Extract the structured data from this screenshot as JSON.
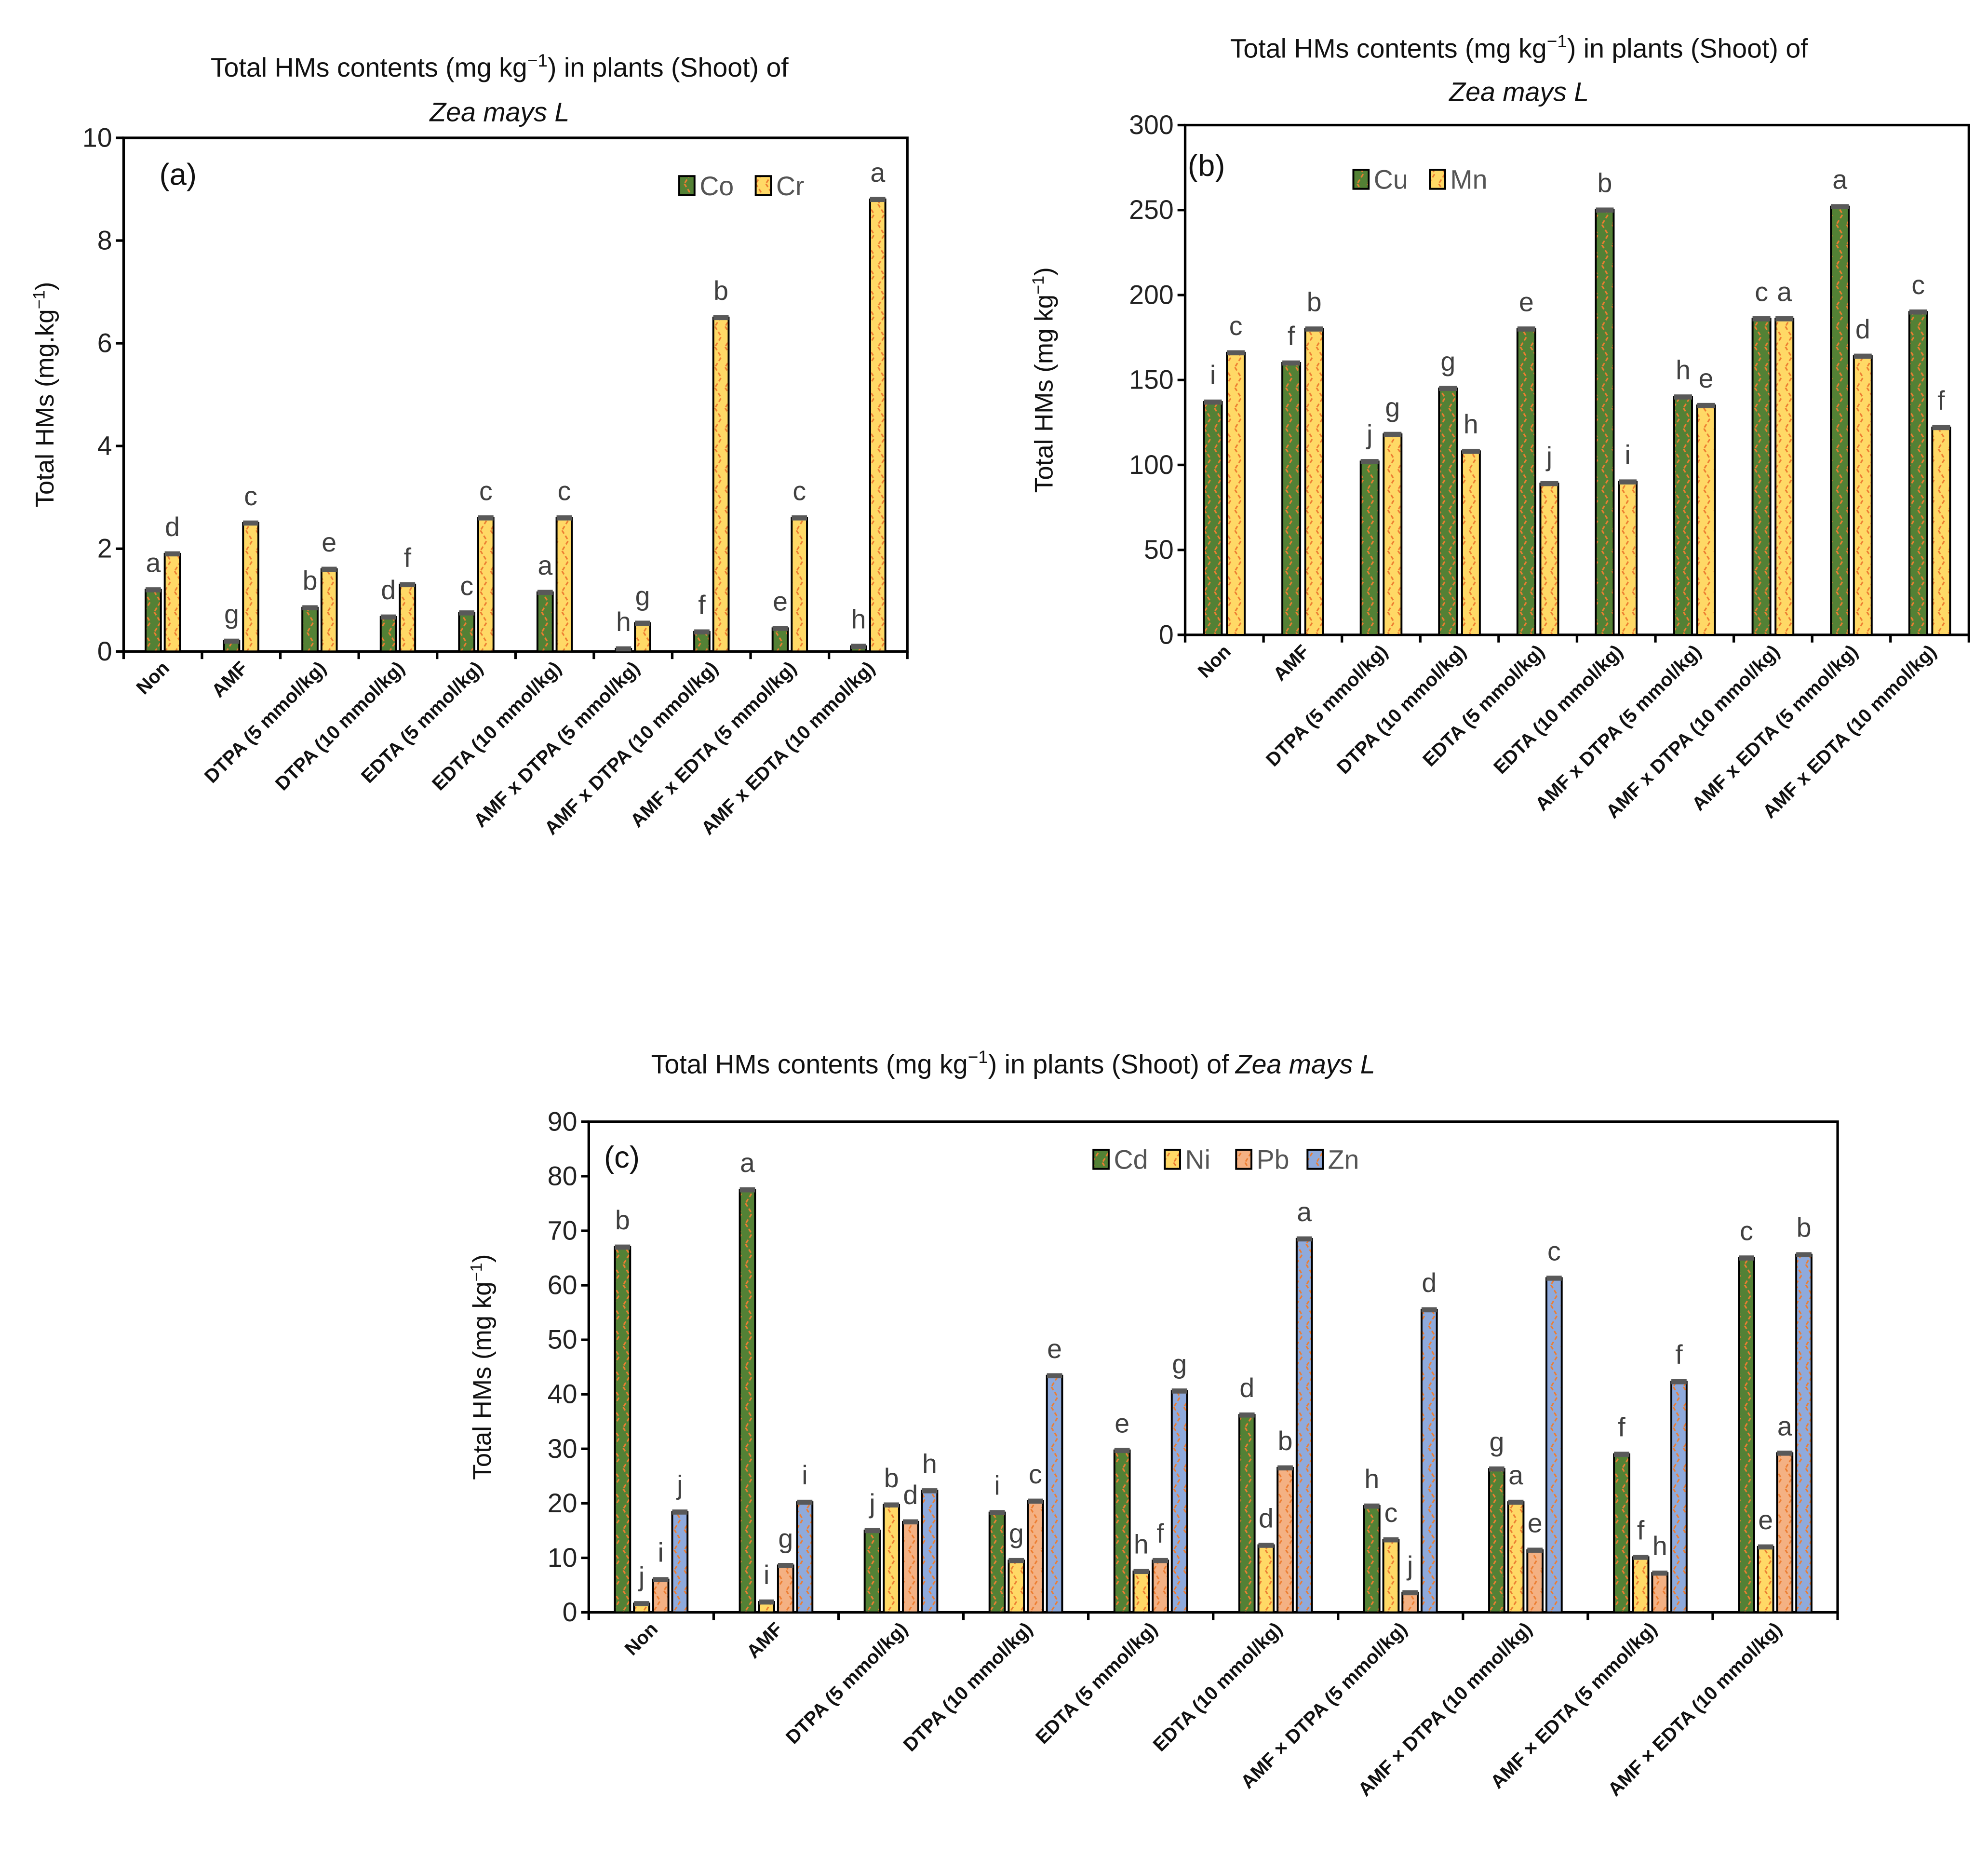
{
  "categories": [
    "Non",
    "AMF",
    "DTPA (5 mmol/kg)",
    "DTPA (10 mmol/kg)",
    "EDTA (5 mmol/kg)",
    "EDTA (10 mmol/kg)",
    "AMF x DTPA (5 mmol/kg)",
    "AMF x DTPA (10 mmol/kg)",
    "AMF x EDTA (5 mmol/kg)",
    "AMF x EDTA (10 mmol/kg)"
  ],
  "categories_c": [
    "Non",
    "AMF",
    "DTPA (5 mmol/kg)",
    "DTPA (10 mmol/kg)",
    "EDTA (5 mmol/kg)",
    "EDTA (10 mmol/kg)",
    "AMF × DTPA (5 mmol/kg)",
    "AMF × DTPA (10 mmol/kg)",
    "AMF × EDTA (5 mmol/kg)",
    "AMF × EDTA (10 mmol/kg)"
  ],
  "colors": {
    "green": "#538135",
    "yellow": "#FFD966",
    "salmon": "#F4B183",
    "blue": "#8FAADC",
    "hatch": "#ED7D31",
    "cap": "#595959"
  },
  "chart_data": [
    {
      "type": "bar",
      "panel": "(a)",
      "title_prefix": "Total HMs contents (mg kg",
      "title_sup": "−1",
      "title_mid": ") in plants (Shoot) of",
      "title_italic": "Zea mays L",
      "ylabel_prefix": "Total HMs (mg.kg",
      "ylabel_sup": "−1",
      "ylabel_suffix": ")",
      "ylim": [
        0,
        10
      ],
      "yticks": [
        "0",
        "2",
        "4",
        "6",
        "8",
        "10"
      ],
      "ytick_values": [
        0,
        2,
        4,
        6,
        8,
        10
      ],
      "series": [
        {
          "name": "Co",
          "color": "green",
          "values": [
            1.2,
            0.2,
            0.85,
            0.67,
            0.75,
            1.15,
            0.05,
            0.38,
            0.45,
            0.1
          ],
          "letters": [
            "a",
            "g",
            "b",
            "d",
            "c",
            "a",
            "h",
            "f",
            "e",
            "h"
          ]
        },
        {
          "name": "Cr",
          "color": "yellow",
          "values": [
            1.9,
            2.5,
            1.6,
            1.3,
            2.6,
            2.6,
            0.55,
            6.5,
            2.6,
            8.8
          ],
          "letters": [
            "d",
            "c",
            "e",
            "f",
            "c",
            "c",
            "g",
            "b",
            "c",
            "a"
          ]
        }
      ]
    },
    {
      "type": "bar",
      "panel": "(b)",
      "title_prefix": "Total HMs contents (mg kg",
      "title_sup": "−1",
      "title_mid": ") in plants (Shoot) of",
      "title_italic": "Zea mays L",
      "ylabel_prefix": "Total HMs (mg kg",
      "ylabel_sup": "−1",
      "ylabel_suffix": ")",
      "ylim": [
        0,
        300
      ],
      "yticks": [
        "0",
        "50",
        "100",
        "150",
        "200",
        "250",
        "300"
      ],
      "ytick_values": [
        0,
        50,
        100,
        150,
        200,
        250,
        300
      ],
      "series": [
        {
          "name": "Cu",
          "color": "green",
          "values": [
            137,
            160,
            102,
            145,
            180,
            250,
            140,
            186,
            252,
            190
          ],
          "letters": [
            "i",
            "f",
            "j",
            "g",
            "e",
            "b",
            "h",
            "c",
            "a",
            "c"
          ]
        },
        {
          "name": "Mn",
          "color": "yellow",
          "values": [
            166,
            180,
            118,
            108,
            89,
            90,
            135,
            186,
            164,
            122
          ],
          "letters": [
            "c",
            "b",
            "g",
            "h",
            "j",
            "i",
            "e",
            "a",
            "d",
            "f"
          ]
        }
      ]
    },
    {
      "type": "bar",
      "panel": "(c)",
      "title_prefix": "Total HMs contents (mg kg",
      "title_sup": "−1",
      "title_mid": ") in plants (Shoot) of",
      "title_italic": "Zea mays L",
      "ylabel_prefix": "Total HMs (mg kg",
      "ylabel_sup": "−1",
      "ylabel_suffix": ")",
      "ylim": [
        0,
        90
      ],
      "yticks": [
        "0",
        "10",
        "20",
        "30",
        "40",
        "50",
        "60",
        "70",
        "80",
        "90"
      ],
      "ytick_values": [
        0,
        10,
        20,
        30,
        40,
        50,
        60,
        70,
        80,
        90
      ],
      "series": [
        {
          "name": "Cd",
          "color": "green",
          "values": [
            67,
            77.5,
            15,
            18.3,
            29.7,
            36.2,
            19.5,
            26.3,
            29,
            65
          ],
          "letters": [
            "b",
            "a",
            "j",
            "i",
            "e",
            "d",
            "h",
            "g",
            "f",
            "c"
          ]
        },
        {
          "name": "Ni",
          "color": "yellow",
          "values": [
            1.6,
            1.9,
            19.7,
            9.5,
            7.5,
            12.3,
            13.3,
            20.2,
            10.1,
            12
          ],
          "letters": [
            "j",
            "i",
            "b",
            "g",
            "h",
            "d",
            "c",
            "a",
            "f",
            "e"
          ]
        },
        {
          "name": "Pb",
          "color": "salmon",
          "values": [
            6,
            8.6,
            16.6,
            20.4,
            9.5,
            26.5,
            3.6,
            11.4,
            7.2,
            29.2
          ],
          "letters": [
            "i",
            "g",
            "d",
            "c",
            "f",
            "b",
            "j",
            "e",
            "h",
            "a"
          ]
        },
        {
          "name": "Zn",
          "color": "blue",
          "values": [
            18.4,
            20.2,
            22.3,
            43.4,
            40.6,
            68.5,
            55.5,
            61.3,
            42.3,
            65.6
          ],
          "letters": [
            "j",
            "i",
            "h",
            "e",
            "g",
            "a",
            "d",
            "c",
            "f",
            "b"
          ]
        }
      ]
    }
  ]
}
